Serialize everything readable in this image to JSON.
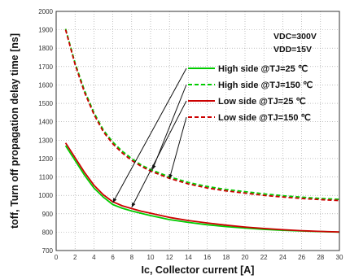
{
  "chart_data": {
    "type": "line",
    "xlabel": "Ic, Collector current [A]",
    "ylabel": "toff, Turn off propagation delay time [ns]",
    "xlim": [
      0,
      30
    ],
    "ylim": [
      700,
      2000
    ],
    "x_ticks": [
      0,
      2,
      4,
      6,
      8,
      10,
      12,
      14,
      16,
      18,
      20,
      22,
      24,
      26,
      28,
      30
    ],
    "y_ticks": [
      700,
      800,
      900,
      1000,
      1100,
      1200,
      1300,
      1400,
      1500,
      1600,
      1700,
      1800,
      1900,
      2000
    ],
    "grid": true,
    "annotations": [
      "VDC=300V",
      "VDD=15V"
    ],
    "legend_position": "right",
    "series": [
      {
        "name": "High side @TJ=25 ℃",
        "color": "#00cc00",
        "dash": "solid",
        "x": [
          1,
          2,
          3,
          4,
          5,
          6,
          7,
          8,
          9,
          10,
          12,
          14,
          16,
          18,
          20,
          22,
          24,
          26,
          28,
          30
        ],
        "y": [
          1270,
          1190,
          1110,
          1040,
          990,
          950,
          930,
          915,
          902,
          890,
          868,
          853,
          840,
          830,
          822,
          815,
          810,
          806,
          803,
          800
        ]
      },
      {
        "name": "High side @TJ=150 ℃",
        "color": "#00cc00",
        "dash": "dashed",
        "x": [
          1,
          2,
          3,
          4,
          5,
          6,
          7,
          8,
          9,
          10,
          12,
          14,
          16,
          18,
          20,
          22,
          24,
          26,
          28,
          30
        ],
        "y": [
          1905,
          1720,
          1570,
          1450,
          1355,
          1290,
          1240,
          1200,
          1165,
          1140,
          1100,
          1070,
          1048,
          1032,
          1020,
          1008,
          998,
          990,
          983,
          978
        ]
      },
      {
        "name": "Low side @TJ=25 ℃",
        "color": "#cc0000",
        "dash": "solid",
        "x": [
          1,
          2,
          3,
          4,
          5,
          6,
          7,
          8,
          9,
          10,
          12,
          14,
          16,
          18,
          20,
          22,
          24,
          26,
          28,
          30
        ],
        "y": [
          1285,
          1205,
          1125,
          1055,
          1003,
          965,
          943,
          928,
          914,
          903,
          880,
          863,
          850,
          838,
          828,
          820,
          813,
          808,
          804,
          801
        ]
      },
      {
        "name": "Low side @TJ=150 ℃",
        "color": "#cc0000",
        "dash": "dashed",
        "x": [
          1,
          2,
          3,
          4,
          5,
          6,
          7,
          8,
          9,
          10,
          12,
          14,
          16,
          18,
          20,
          22,
          24,
          26,
          28,
          30
        ],
        "y": [
          1900,
          1712,
          1560,
          1440,
          1345,
          1280,
          1230,
          1190,
          1158,
          1132,
          1092,
          1062,
          1040,
          1024,
          1012,
          1000,
          991,
          983,
          977,
          972
        ]
      }
    ]
  }
}
